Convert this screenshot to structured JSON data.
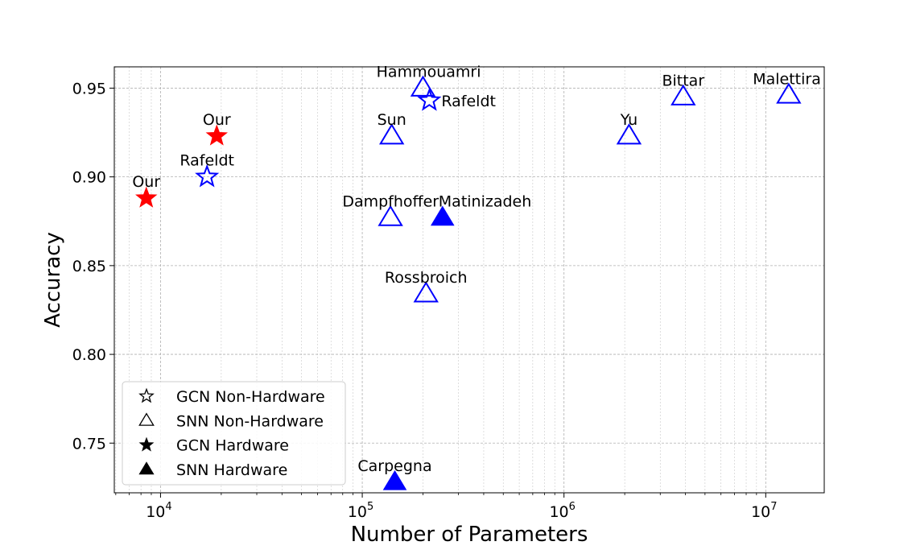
{
  "chart_data": {
    "type": "scatter",
    "xlabel": "Number of Parameters",
    "ylabel": "Accuracy",
    "xscale": "log",
    "xlim": [
      5900,
      19500000
    ],
    "ylim": [
      0.722,
      0.962
    ],
    "grid": true,
    "legend_position": "lower-left",
    "x_ticks": [
      {
        "value": 10000,
        "base": "10",
        "exp": "4"
      },
      {
        "value": 100000,
        "base": "10",
        "exp": "5"
      },
      {
        "value": 1000000,
        "base": "10",
        "exp": "6"
      },
      {
        "value": 10000000,
        "base": "10",
        "exp": "7"
      }
    ],
    "y_ticks": [
      {
        "value": 0.75,
        "label": "0.75"
      },
      {
        "value": 0.8,
        "label": "0.80"
      },
      {
        "value": 0.85,
        "label": "0.85"
      },
      {
        "value": 0.9,
        "label": "0.90"
      },
      {
        "value": 0.95,
        "label": "0.95"
      }
    ],
    "legend": [
      {
        "label": "GCN Non-Hardware",
        "marker": "star",
        "filled": false
      },
      {
        "label": "SNN Non-Hardware",
        "marker": "triangle",
        "filled": false
      },
      {
        "label": "GCN Hardware",
        "marker": "star",
        "filled": true
      },
      {
        "label": "SNN Hardware",
        "marker": "triangle",
        "filled": true
      }
    ],
    "points": [
      {
        "label": "Our",
        "x": 8500,
        "y": 0.888,
        "marker": "star",
        "filled": true,
        "color": "#ff0000",
        "label_pos": "above"
      },
      {
        "label": "Our",
        "x": 19000,
        "y": 0.923,
        "marker": "star",
        "filled": true,
        "color": "#ff0000",
        "label_pos": "above"
      },
      {
        "label": "Rafeldt",
        "x": 17000,
        "y": 0.9,
        "marker": "star",
        "filled": false,
        "color": "#0000ff",
        "label_pos": "above"
      },
      {
        "label": "Rafeldt",
        "x": 215000,
        "y": 0.943,
        "marker": "star",
        "filled": false,
        "color": "#0000ff",
        "label_pos": "right"
      },
      {
        "label": "Hammouamri",
        "x": 200000,
        "y": 0.95,
        "marker": "triangle",
        "filled": false,
        "color": "#0000ff",
        "label_pos": "above-left"
      },
      {
        "label": "Sun",
        "x": 140000,
        "y": 0.923,
        "marker": "triangle",
        "filled": false,
        "color": "#0000ff",
        "label_pos": "above"
      },
      {
        "label": "Dampfhoffer",
        "x": 138000,
        "y": 0.877,
        "marker": "triangle",
        "filled": false,
        "color": "#0000ff",
        "label_pos": "above-left"
      },
      {
        "label": "Matinizadeh",
        "x": 250000,
        "y": 0.877,
        "marker": "triangle",
        "filled": true,
        "color": "#0000ff",
        "label_pos": "above-right"
      },
      {
        "label": "Rossbroich",
        "x": 207000,
        "y": 0.834,
        "marker": "triangle",
        "filled": false,
        "color": "#0000ff",
        "label_pos": "above"
      },
      {
        "label": "Carpegna",
        "x": 145000,
        "y": 0.728,
        "marker": "triangle",
        "filled": true,
        "color": "#0000ff",
        "label_pos": "above"
      },
      {
        "label": "Yu",
        "x": 2100000,
        "y": 0.923,
        "marker": "triangle",
        "filled": false,
        "color": "#0000ff",
        "label_pos": "above"
      },
      {
        "label": "Bittar",
        "x": 3900000,
        "y": 0.945,
        "marker": "triangle",
        "filled": false,
        "color": "#0000ff",
        "label_pos": "above"
      },
      {
        "label": "Malettira",
        "x": 13000000,
        "y": 0.946,
        "marker": "triangle",
        "filled": false,
        "color": "#0000ff",
        "label_pos": "above-left"
      }
    ]
  }
}
